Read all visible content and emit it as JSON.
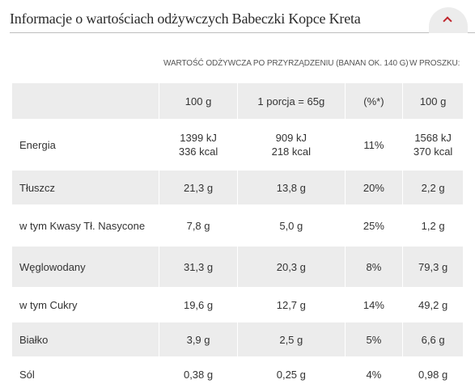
{
  "title": "Informacje o wartościach odżywczych Babeczki Kopce Kreta",
  "column_headers": {
    "prepared": "WARTOŚĆ ODŻYWCZA PO PRZYRZĄDZENIU (BANAN OK. 140 G)",
    "powder": "W PROSZKU:"
  },
  "table": {
    "header": [
      "",
      "100 g",
      "1 porcja = 65g",
      "(%*)",
      "100 g"
    ],
    "rows": [
      {
        "label": "Energia",
        "per100_line1": "1399 kJ",
        "per100_line2": "336 kcal",
        "portion_line1": "909 kJ",
        "portion_line2": "218 kcal",
        "pct": "11%",
        "powder_line1": "1568 kJ",
        "powder_line2": "370 kcal"
      },
      {
        "label": "Tłuszcz",
        "per100": "21,3 g",
        "portion": "13,8 g",
        "pct": "20%",
        "powder": "2,2 g"
      },
      {
        "label": "w tym Kwasy Tł. Nasycone",
        "per100": "7,8 g",
        "portion": "5,0 g",
        "pct": "25%",
        "powder": "1,2 g"
      },
      {
        "label": "Węglowodany",
        "per100": "31,3 g",
        "portion": "20,3 g",
        "pct": "8%",
        "powder": "79,3 g"
      },
      {
        "label": "w tym Cukry",
        "per100": "19,6 g",
        "portion": "12,7 g",
        "pct": "14%",
        "powder": "49,2 g"
      },
      {
        "label": "Białko",
        "per100": "3,9 g",
        "portion": "2,5 g",
        "pct": "5%",
        "powder": "6,6 g"
      },
      {
        "label": "Sól",
        "per100": "0,38 g",
        "portion": "0,25 g",
        "pct": "4%",
        "powder": "0,98 g"
      }
    ]
  },
  "colors": {
    "accent": "#c0262d",
    "row_shade": "#ececec",
    "rule": "#bdbdbd"
  },
  "icons": {
    "collapse": "chevron-up-icon"
  }
}
